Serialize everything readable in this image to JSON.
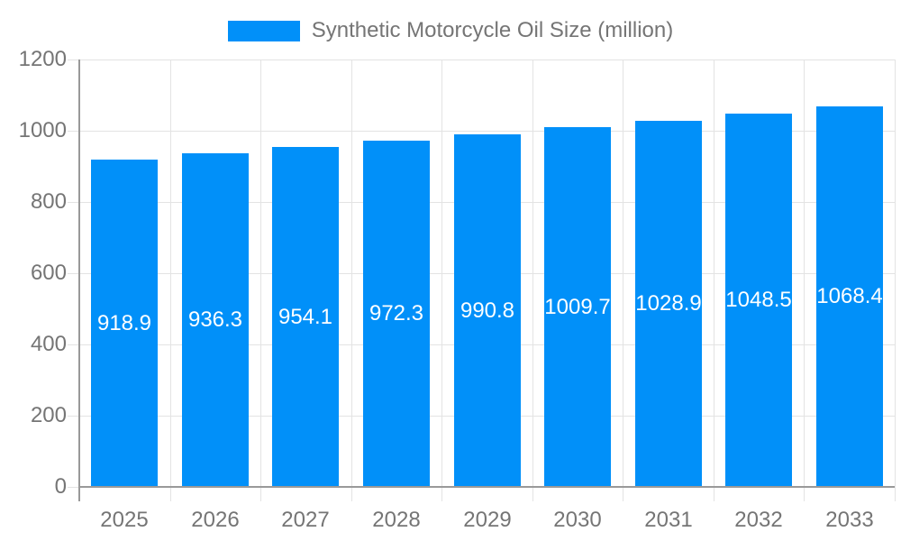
{
  "chart_data": {
    "type": "bar",
    "title": "",
    "legend": "Synthetic Motorcycle Oil Size (million)",
    "legend_position": "top-center",
    "categories": [
      "2025",
      "2026",
      "2027",
      "2028",
      "2029",
      "2030",
      "2031",
      "2032",
      "2033"
    ],
    "values": [
      918.9,
      936.3,
      954.1,
      972.3,
      990.8,
      1009.7,
      1028.9,
      1048.5,
      1068.4
    ],
    "value_labels": [
      "918.9",
      "936.3",
      "954.1",
      "972.3",
      "990.8",
      "1009.7",
      "1028.9",
      "1048.5",
      "1068.4"
    ],
    "xlabel": "",
    "ylabel": "",
    "ylim": [
      0,
      1200
    ],
    "yticks": [
      0,
      200,
      400,
      600,
      800,
      1000,
      1200
    ],
    "grid": true,
    "colors": {
      "bar": "#0190f9",
      "grid": "#e3e3e3",
      "axis": "#999999",
      "tick_label": "#757575",
      "legend_text": "#757575",
      "bar_label": "#ffffff",
      "background": "#ffffff"
    }
  }
}
